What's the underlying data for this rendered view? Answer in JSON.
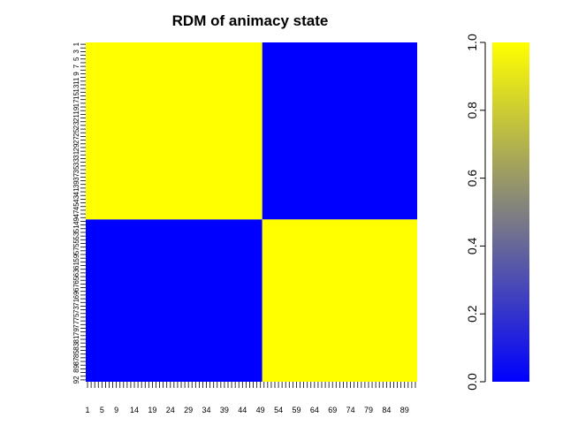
{
  "chart_data": {
    "type": "heatmap",
    "title": "RDM of animacy state",
    "n": 92,
    "blocks": [
      {
        "rows": [
          1,
          48
        ],
        "cols": [
          1,
          49
        ],
        "value": 1
      },
      {
        "rows": [
          1,
          48
        ],
        "cols": [
          50,
          92
        ],
        "value": 0
      },
      {
        "rows": [
          49,
          92
        ],
        "cols": [
          1,
          49
        ],
        "value": 0
      },
      {
        "rows": [
          49,
          92
        ],
        "cols": [
          50,
          92
        ],
        "value": 1
      }
    ],
    "x_tick_labels": [
      "1",
      "5",
      "9",
      "14",
      "19",
      "24",
      "29",
      "34",
      "39",
      "44",
      "49",
      "54",
      "59",
      "64",
      "69",
      "74",
      "79",
      "84",
      "89"
    ],
    "y_tick_labels": [
      "1",
      "3",
      "5",
      "7",
      "9",
      "11",
      "13",
      "15",
      "17",
      "19",
      "21",
      "23",
      "25",
      "27",
      "29",
      "31",
      "33",
      "35",
      "37",
      "39",
      "41",
      "43",
      "45",
      "47",
      "49",
      "51",
      "53",
      "55",
      "57",
      "59",
      "61",
      "63",
      "65",
      "67",
      "69",
      "71",
      "73",
      "75",
      "77",
      "79",
      "81",
      "83",
      "85",
      "87",
      "89",
      "92"
    ],
    "colorbar": {
      "ticks": [
        "0.0",
        "0.2",
        "0.4",
        "0.6",
        "0.8",
        "1.0"
      ],
      "range": [
        0,
        1
      ],
      "colors": {
        "low": "#0000ff",
        "mid": "#808080",
        "high": "#ffff00"
      }
    },
    "legend_position": "right",
    "grid": false
  }
}
